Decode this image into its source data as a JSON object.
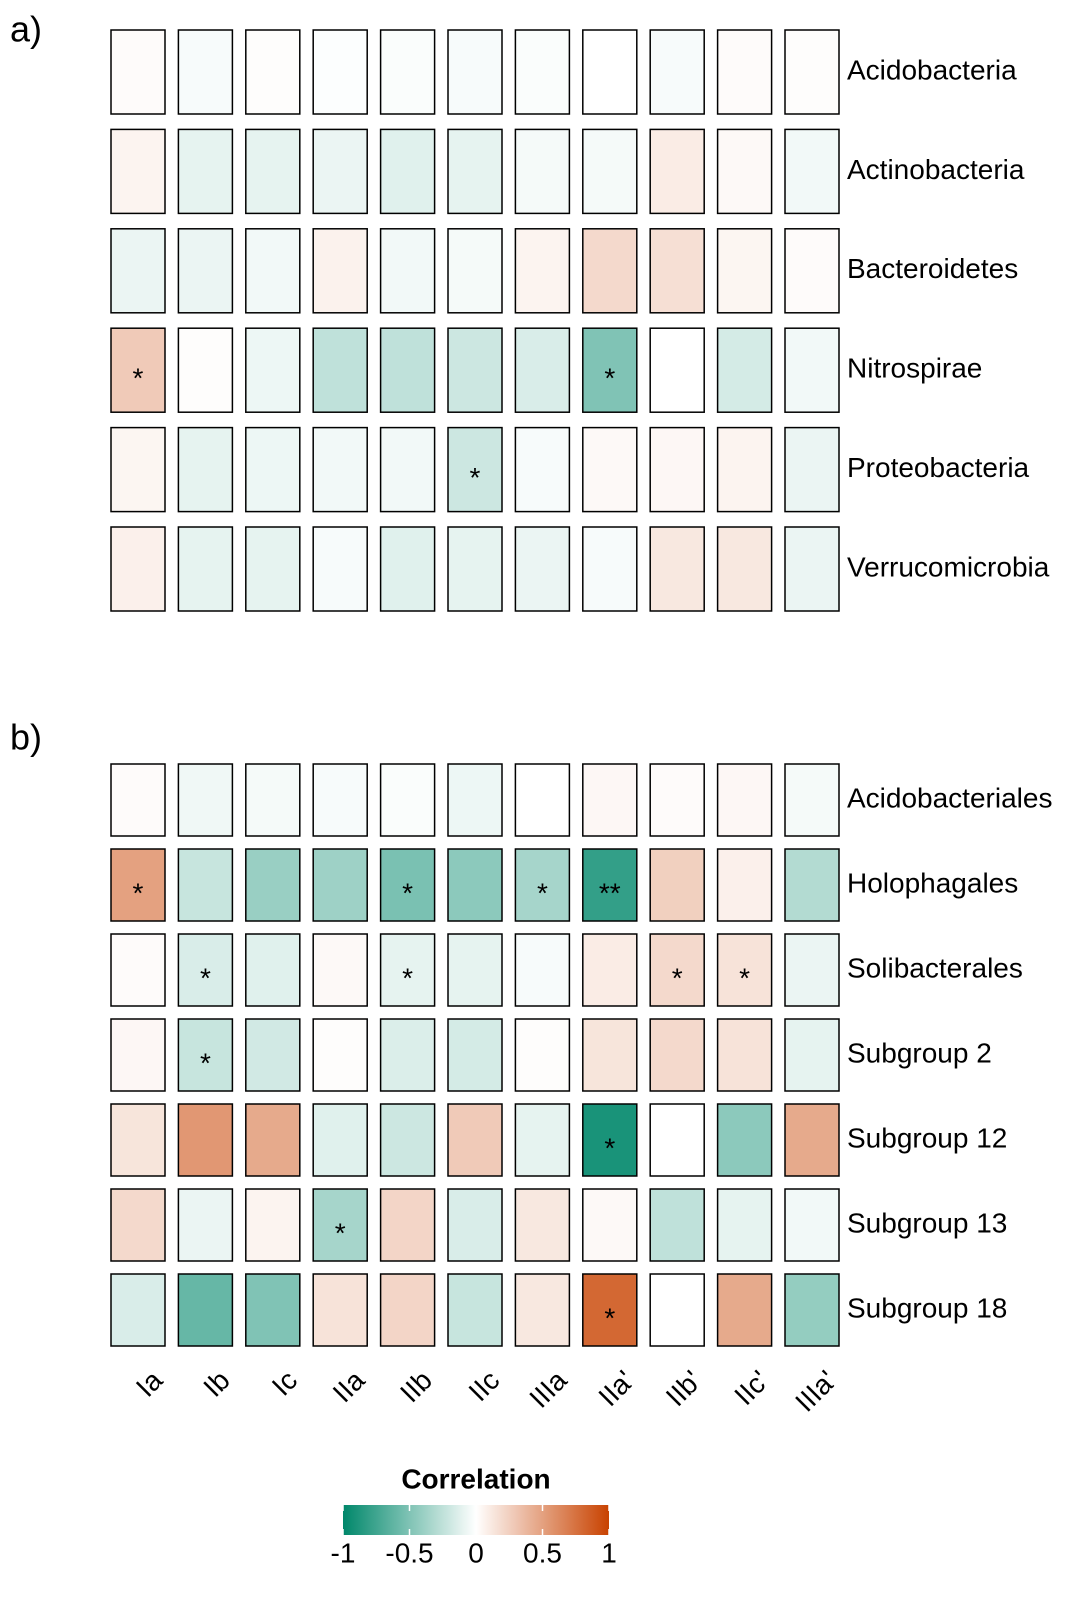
{
  "chart_data": [
    {
      "type": "heatmap",
      "panel": "a)",
      "rows": [
        "Acidobacteria",
        "Actinobacteria",
        "Bacteroidetes",
        "Nitrospirae",
        "Proteobacteria",
        "Verrucomicrobia"
      ],
      "values": [
        [
          0.02,
          -0.03,
          0.01,
          -0.01,
          -0.02,
          -0.03,
          -0.02,
          0,
          -0.03,
          0.02,
          0.01
        ],
        [
          0.06,
          -0.1,
          -0.1,
          -0.08,
          -0.12,
          -0.1,
          -0.04,
          -0.04,
          0.1,
          0.03,
          -0.05
        ],
        [
          -0.08,
          -0.08,
          -0.05,
          0.07,
          -0.05,
          -0.04,
          0.06,
          0.2,
          0.17,
          0.05,
          0.02
        ],
        [
          0.28,
          0.01,
          -0.07,
          -0.25,
          -0.25,
          -0.2,
          -0.15,
          -0.5,
          0,
          -0.17,
          -0.05
        ],
        [
          0.05,
          -0.1,
          -0.07,
          -0.05,
          -0.05,
          -0.2,
          -0.03,
          0.03,
          0.04,
          0.06,
          -0.08
        ],
        [
          0.08,
          -0.1,
          -0.1,
          -0.03,
          -0.12,
          -0.1,
          -0.08,
          -0.03,
          0.12,
          0.12,
          -0.08
        ]
      ],
      "annotations": [
        [
          null,
          null,
          null,
          null,
          null,
          null,
          null,
          null,
          null,
          null,
          null
        ],
        [
          null,
          null,
          null,
          null,
          null,
          null,
          null,
          null,
          null,
          null,
          null
        ],
        [
          null,
          null,
          null,
          null,
          null,
          null,
          null,
          null,
          null,
          null,
          null
        ],
        [
          "*",
          null,
          null,
          null,
          null,
          null,
          null,
          "*",
          null,
          null,
          null
        ],
        [
          null,
          null,
          null,
          null,
          null,
          "*",
          null,
          null,
          null,
          null,
          null
        ],
        [
          null,
          null,
          null,
          null,
          null,
          null,
          null,
          null,
          null,
          null,
          null
        ]
      ],
      "colors": [
        "#00876a",
        "#ffffff",
        "#c84200"
      ]
    },
    {
      "type": "heatmap",
      "panel": "b)",
      "categories": [
        "Ia",
        "Ib",
        "Ic",
        "IIa",
        "IIb",
        "IIc",
        "IIIa",
        "IIa'",
        "IIb'",
        "IIc'",
        "IIIa'"
      ],
      "rows": [
        "Acidobacteriales",
        "Holophagales",
        "Solibacterales",
        "Subgroup 2",
        "Subgroup 12",
        "Subgroup 13",
        "Subgroup 18"
      ],
      "values": [
        [
          0.02,
          -0.06,
          -0.04,
          -0.03,
          -0.02,
          -0.07,
          0,
          0.04,
          0.02,
          0.04,
          -0.04
        ],
        [
          0.5,
          -0.22,
          -0.4,
          -0.38,
          -0.52,
          -0.45,
          -0.35,
          -0.8,
          0.25,
          0.08,
          -0.3
        ],
        [
          0.02,
          -0.15,
          -0.12,
          0.03,
          -0.1,
          -0.1,
          -0.03,
          0.1,
          0.2,
          0.15,
          -0.08
        ],
        [
          0.04,
          -0.22,
          -0.18,
          0.01,
          -0.14,
          -0.17,
          0.01,
          0.14,
          0.2,
          0.15,
          -0.1
        ],
        [
          0.14,
          0.55,
          0.45,
          -0.12,
          -0.2,
          0.28,
          -0.1,
          -0.9,
          0,
          -0.45,
          0.45
        ],
        [
          0.2,
          -0.08,
          0.06,
          -0.35,
          0.22,
          -0.15,
          0.12,
          0.03,
          -0.25,
          -0.1,
          -0.05
        ],
        [
          -0.15,
          -0.6,
          -0.5,
          0.15,
          0.22,
          -0.22,
          0.12,
          0.8,
          0,
          0.45,
          -0.42
        ]
      ],
      "annotations": [
        [
          null,
          null,
          null,
          null,
          null,
          null,
          null,
          null,
          null,
          null,
          null
        ],
        [
          "*",
          null,
          null,
          null,
          "*",
          null,
          "*",
          "**",
          null,
          null,
          null
        ],
        [
          null,
          "*",
          null,
          null,
          "*",
          null,
          null,
          null,
          "*",
          "*",
          null
        ],
        [
          null,
          "*",
          null,
          null,
          null,
          null,
          null,
          null,
          null,
          null,
          null
        ],
        [
          null,
          null,
          null,
          null,
          null,
          null,
          null,
          "*",
          null,
          null,
          null
        ],
        [
          null,
          null,
          null,
          "*",
          null,
          null,
          null,
          null,
          null,
          null,
          null
        ],
        [
          null,
          null,
          null,
          null,
          null,
          null,
          null,
          "*",
          null,
          null,
          null
        ]
      ],
      "colors": [
        "#00876a",
        "#ffffff",
        "#c84200"
      ],
      "colorbar": {
        "title": "Correlation",
        "range": [
          -1,
          1
        ],
        "ticks": [
          -1,
          -0.5,
          0,
          0.5,
          1
        ]
      }
    }
  ]
}
